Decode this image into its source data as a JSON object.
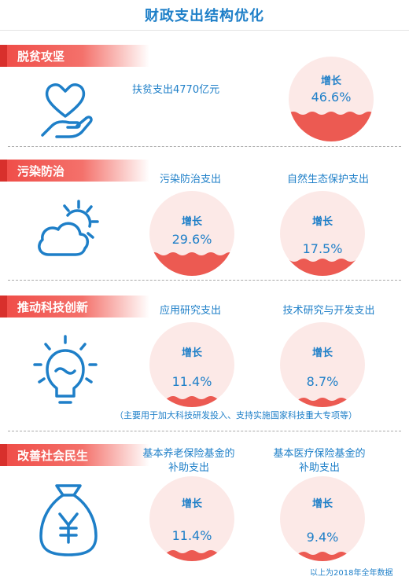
{
  "title": "财政支出结构优化",
  "sections": [
    {
      "heading": "脱贫攻坚",
      "icon": "heart-hand-icon",
      "items": [
        {
          "label": "扶贫支出4770亿元"
        },
        {
          "growth_label": "增长",
          "value": "46.6%"
        }
      ]
    },
    {
      "heading": "污染防治",
      "icon": "sun-cloud-icon",
      "items": [
        {
          "label": "污染防治支出",
          "growth_label": "增长",
          "value": "29.6%"
        },
        {
          "label": "自然生态保护支出",
          "growth_label": "增长",
          "value": "17.5%"
        }
      ]
    },
    {
      "heading": "推动科技创新",
      "icon": "lightbulb-icon",
      "items": [
        {
          "label": "应用研究支出",
          "growth_label": "增长",
          "value": "11.4%"
        },
        {
          "label": "技术研究与开发支出",
          "growth_label": "增长",
          "value": "8.7%"
        }
      ],
      "note": "（主要用于加大科技研发投入、支持实施国家科技重大专项等）"
    },
    {
      "heading": "改善社会民生",
      "icon": "yuan-money-bag-icon",
      "items": [
        {
          "label_line1": "基本养老保险基金的",
          "label_line2": "补助支出",
          "growth_label": "增长",
          "value": "11.4%"
        },
        {
          "label_line1": "基本医疗保险基金的",
          "label_line2": "补助支出",
          "growth_label": "增长",
          "value": "9.4%"
        }
      ]
    }
  ],
  "footer": "以上为2018年全年数据",
  "colors": {
    "accent_blue": "#1e7fc8",
    "banner_red": "#ef4b46",
    "circle_bg": "#fce9e7",
    "wave_red": "#ec5a52"
  }
}
